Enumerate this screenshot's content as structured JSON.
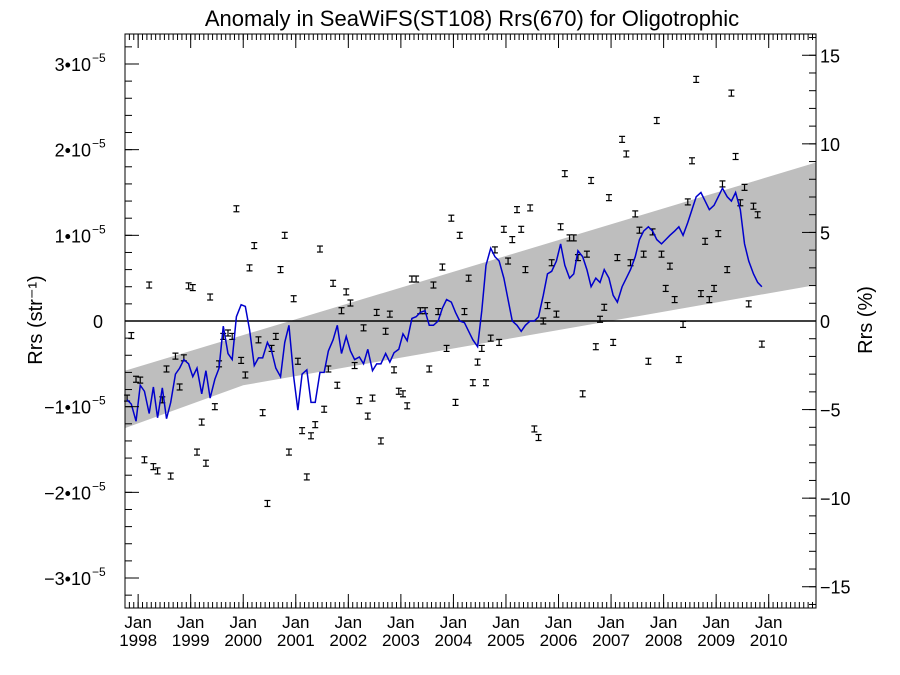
{
  "chart_data": {
    "type": "scatter",
    "title": "Anomaly in SeaWiFS(ST108) Rrs(670) for Oligotrophic",
    "ylabel_left": "Rrs (str⁻¹)",
    "ylabel_right": "Rrs (%)",
    "x_axis": {
      "range": [
        1997.75,
        2010.9
      ],
      "ticks": [
        {
          "x": 1998.0,
          "month": "Jan",
          "year": "1998"
        },
        {
          "x": 1999.0,
          "month": "Jan",
          "year": "1999"
        },
        {
          "x": 2000.0,
          "month": "Jan",
          "year": "2000"
        },
        {
          "x": 2001.0,
          "month": "Jan",
          "year": "2001"
        },
        {
          "x": 2002.0,
          "month": "Jan",
          "year": "2002"
        },
        {
          "x": 2003.0,
          "month": "Jan",
          "year": "2003"
        },
        {
          "x": 2004.0,
          "month": "Jan",
          "year": "2004"
        },
        {
          "x": 2005.0,
          "month": "Jan",
          "year": "2005"
        },
        {
          "x": 2006.0,
          "month": "Jan",
          "year": "2006"
        },
        {
          "x": 2007.0,
          "month": "Jan",
          "year": "2007"
        },
        {
          "x": 2008.0,
          "month": "Jan",
          "year": "2008"
        },
        {
          "x": 2009.0,
          "month": "Jan",
          "year": "2009"
        },
        {
          "x": 2010.0,
          "month": "Jan",
          "year": "2010"
        }
      ]
    },
    "y_left": {
      "range": [
        -3.35e-05,
        3.35e-05
      ],
      "ticks": [
        {
          "v": 3e-05,
          "mant": "3•10",
          "exp": "−5"
        },
        {
          "v": 2e-05,
          "mant": "2•10",
          "exp": "−5"
        },
        {
          "v": 1e-05,
          "mant": "1•10",
          "exp": "−5"
        },
        {
          "v": 0,
          "mant": "0",
          "exp": ""
        },
        {
          "v": -1e-05,
          "mant": "−1•10",
          "exp": "−5"
        },
        {
          "v": -2e-05,
          "mant": "−2•10",
          "exp": "−5"
        },
        {
          "v": -3e-05,
          "mant": "−3•10",
          "exp": "−5"
        }
      ]
    },
    "y_right": {
      "range": [
        -16.2,
        16.2
      ],
      "ticks": [
        {
          "v": 15,
          "label": "15"
        },
        {
          "v": 10,
          "label": "10"
        },
        {
          "v": 5,
          "label": "5"
        },
        {
          "v": 0,
          "label": "0"
        },
        {
          "v": -5,
          "label": "−5"
        },
        {
          "v": -10,
          "label": "−10"
        },
        {
          "v": -15,
          "label": "−15"
        }
      ]
    },
    "zero_line": 0,
    "trend_band": {
      "color": "#bebebe",
      "upper": [
        [
          1997.75,
          -5.8e-06
        ],
        [
          2010.9,
          1.85e-05
        ]
      ],
      "lower": [
        [
          1997.75,
          -1.25e-05
        ],
        [
          2000.0,
          -7.5e-06
        ],
        [
          2010.9,
          4.2e-06
        ]
      ]
    },
    "points": [
      [
        1997.79,
        -9e-06
      ],
      [
        1997.87,
        -1.7e-06
      ],
      [
        1997.96,
        -6.8e-06
      ],
      [
        1998.04,
        -6.9e-06
      ],
      [
        1998.12,
        -1.62e-05
      ],
      [
        1998.21,
        4.2e-06
      ],
      [
        1998.29,
        -1.7e-05
      ],
      [
        1998.37,
        -1.75e-05
      ],
      [
        1998.46,
        -9.2e-06
      ],
      [
        1998.54,
        -5.6e-06
      ],
      [
        1998.62,
        -1.81e-05
      ],
      [
        1998.71,
        -4.1e-06
      ],
      [
        1998.79,
        -7.7e-06
      ],
      [
        1998.87,
        -4.3e-06
      ],
      [
        1998.96,
        4.1e-06
      ],
      [
        1999.04,
        3.9e-06
      ],
      [
        1999.12,
        -1.53e-05
      ],
      [
        1999.21,
        -1.18e-05
      ],
      [
        1999.29,
        -1.66e-05
      ],
      [
        1999.37,
        2.8e-06
      ],
      [
        1999.46,
        -1e-05
      ],
      [
        1999.54,
        -5e-06
      ],
      [
        1999.62,
        -1.8e-06
      ],
      [
        1999.71,
        -1.4e-06
      ],
      [
        1999.79,
        -1.8e-06
      ],
      [
        1999.87,
        1.31e-05
      ],
      [
        1999.96,
        -4.6e-06
      ],
      [
        2000.04,
        -6.3e-06
      ],
      [
        2000.12,
        6.2e-06
      ],
      [
        2000.21,
        8.8e-06
      ],
      [
        2000.29,
        -2.2e-06
      ],
      [
        2000.37,
        -1.07e-05
      ],
      [
        2000.46,
        -2.13e-05
      ],
      [
        2000.54,
        -3.2e-06
      ],
      [
        2000.62,
        -1.8e-06
      ],
      [
        2000.71,
        6e-06
      ],
      [
        2000.79,
        1e-05
      ],
      [
        2000.87,
        -1.53e-05
      ],
      [
        2000.96,
        2.6e-06
      ],
      [
        2001.04,
        -4.7e-06
      ],
      [
        2001.12,
        -1.28e-05
      ],
      [
        2001.21,
        -1.82e-05
      ],
      [
        2001.29,
        -1.34e-05
      ],
      [
        2001.37,
        -1.21e-05
      ],
      [
        2001.46,
        8.4e-06
      ],
      [
        2001.54,
        -1.03e-05
      ],
      [
        2001.62,
        -5.6e-06
      ],
      [
        2001.71,
        4.4e-06
      ],
      [
        2001.79,
        -7.5e-06
      ],
      [
        2001.87,
        1.2e-06
      ],
      [
        2001.96,
        3.4e-06
      ],
      [
        2002.04,
        2.1e-06
      ],
      [
        2002.12,
        -5.2e-06
      ],
      [
        2002.21,
        -9.3e-06
      ],
      [
        2002.29,
        -8e-07
      ],
      [
        2002.37,
        -1.11e-05
      ],
      [
        2002.46,
        -9e-06
      ],
      [
        2002.54,
        1e-06
      ],
      [
        2002.62,
        -1.4e-05
      ],
      [
        2002.71,
        -1.2e-06
      ],
      [
        2002.79,
        8e-07
      ],
      [
        2002.87,
        -5.7e-06
      ],
      [
        2002.96,
        -8.2e-06
      ],
      [
        2003.04,
        -8.5e-06
      ],
      [
        2003.12,
        -9.9e-06
      ],
      [
        2003.21,
        4.9e-06
      ],
      [
        2003.29,
        4.9e-06
      ],
      [
        2003.37,
        1.2e-06
      ],
      [
        2003.46,
        1.2e-06
      ],
      [
        2003.54,
        -5.6e-06
      ],
      [
        2003.62,
        4.2e-06
      ],
      [
        2003.71,
        1.1e-06
      ],
      [
        2003.79,
        6.3e-06
      ],
      [
        2003.87,
        -3.2e-06
      ],
      [
        2003.96,
        1.2e-05
      ],
      [
        2004.04,
        -9.5e-06
      ],
      [
        2004.12,
        1e-05
      ],
      [
        2004.21,
        1.1e-06
      ],
      [
        2004.29,
        5e-06
      ],
      [
        2004.37,
        -7.2e-06
      ],
      [
        2004.46,
        -4.8e-06
      ],
      [
        2004.54,
        -3.2e-06
      ],
      [
        2004.62,
        -7.2e-06
      ],
      [
        2004.71,
        -2e-06
      ],
      [
        2004.79,
        8.3e-06
      ],
      [
        2004.87,
        -2.5e-06
      ],
      [
        2004.96,
        1.07e-05
      ],
      [
        2005.04,
        7e-06
      ],
      [
        2005.12,
        9.5e-06
      ],
      [
        2005.21,
        1.3e-05
      ],
      [
        2005.29,
        1.07e-05
      ],
      [
        2005.37,
        6e-06
      ],
      [
        2005.46,
        1.32e-05
      ],
      [
        2005.54,
        -1.26e-05
      ],
      [
        2005.62,
        -1.36e-05
      ],
      [
        2005.71,
        0.0
      ],
      [
        2005.79,
        1.8e-06
      ],
      [
        2005.87,
        6.8e-06
      ],
      [
        2005.96,
        8e-07
      ],
      [
        2006.04,
        1.1e-05
      ],
      [
        2006.12,
        1.72e-05
      ],
      [
        2006.21,
        9.7e-06
      ],
      [
        2006.29,
        9.7e-06
      ],
      [
        2006.37,
        7.4e-06
      ],
      [
        2006.46,
        -8.5e-06
      ],
      [
        2006.54,
        7.8e-06
      ],
      [
        2006.62,
        1.64e-05
      ],
      [
        2006.71,
        -3e-06
      ],
      [
        2006.79,
        2e-07
      ],
      [
        2006.87,
        1.6e-06
      ],
      [
        2006.96,
        1.44e-05
      ],
      [
        2007.04,
        -2.5e-06
      ],
      [
        2007.12,
        7.4e-06
      ],
      [
        2007.21,
        2.12e-05
      ],
      [
        2007.29,
        1.95e-05
      ],
      [
        2007.37,
        6.8e-06
      ],
      [
        2007.46,
        1.25e-05
      ],
      [
        2007.54,
        1.06e-05
      ],
      [
        2007.62,
        7.8e-06
      ],
      [
        2007.71,
        -4.7e-06
      ],
      [
        2007.79,
        1.04e-05
      ],
      [
        2007.87,
        2.34e-05
      ],
      [
        2007.96,
        7.8e-06
      ],
      [
        2008.04,
        3.8e-06
      ],
      [
        2008.12,
        6.4e-06
      ],
      [
        2008.21,
        2.5e-06
      ],
      [
        2008.29,
        -4.5e-06
      ],
      [
        2008.37,
        -4e-07
      ],
      [
        2008.46,
        1.39e-05
      ],
      [
        2008.54,
        1.87e-05
      ],
      [
        2008.62,
        2.82e-05
      ],
      [
        2008.71,
        3.2e-06
      ],
      [
        2008.79,
        9.3e-06
      ],
      [
        2008.87,
        2.5e-06
      ],
      [
        2008.96,
        3.8e-06
      ],
      [
        2009.04,
        1.02e-05
      ],
      [
        2009.12,
        1.6e-05
      ],
      [
        2009.21,
        6e-06
      ],
      [
        2009.29,
        2.66e-05
      ],
      [
        2009.37,
        1.92e-05
      ],
      [
        2009.46,
        1.38e-05
      ],
      [
        2009.54,
        1.56e-05
      ],
      [
        2009.62,
        2e-06
      ],
      [
        2009.71,
        1.34e-05
      ],
      [
        2009.79,
        1.24e-05
      ],
      [
        2009.87,
        -2.7e-06
      ]
    ],
    "smoothed_line": {
      "color": "#0000cc",
      "points": [
        [
          1997.79,
          -9.2e-06
        ],
        [
          1997.87,
          -9.7e-06
        ],
        [
          1997.96,
          -1.17e-05
        ],
        [
          1998.04,
          -7.5e-06
        ],
        [
          1998.12,
          -8.2e-06
        ],
        [
          1998.21,
          -1.08e-05
        ],
        [
          1998.29,
          -7.7e-06
        ],
        [
          1998.37,
          -1.13e-05
        ],
        [
          1998.46,
          -7.8e-06
        ],
        [
          1998.54,
          -1.14e-05
        ],
        [
          1998.62,
          -9.5e-06
        ],
        [
          1998.71,
          -6.2e-06
        ],
        [
          1998.79,
          -5.5e-06
        ],
        [
          1998.87,
          -4.5e-06
        ],
        [
          1998.96,
          -5e-06
        ],
        [
          1999.04,
          -6.5e-06
        ],
        [
          1999.12,
          -5.5e-06
        ],
        [
          1999.21,
          -8.5e-06
        ],
        [
          1999.29,
          -5.8e-06
        ],
        [
          1999.37,
          -9e-06
        ],
        [
          1999.46,
          -6.8e-06
        ],
        [
          1999.54,
          -5.5e-06
        ],
        [
          1999.62,
          -6e-07
        ],
        [
          1999.71,
          -3.8e-06
        ],
        [
          1999.79,
          -4.5e-06
        ],
        [
          1999.87,
          5e-07
        ],
        [
          1999.96,
          1.9e-06
        ],
        [
          2000.04,
          1.7e-06
        ],
        [
          2000.12,
          -1e-06
        ],
        [
          2000.21,
          -5.2e-06
        ],
        [
          2000.29,
          -4.3e-06
        ],
        [
          2000.37,
          -4.3e-06
        ],
        [
          2000.46,
          -2.5e-06
        ],
        [
          2000.54,
          -3.5e-06
        ],
        [
          2000.62,
          -5.5e-06
        ],
        [
          2000.71,
          -6.5e-06
        ],
        [
          2000.79,
          -2.5e-06
        ],
        [
          2000.87,
          -5e-07
        ],
        [
          2000.96,
          -6.5e-06
        ],
        [
          2001.04,
          -1.04e-05
        ],
        [
          2001.12,
          -6.2e-06
        ],
        [
          2001.21,
          -5.7e-06
        ],
        [
          2001.29,
          -9.5e-06
        ],
        [
          2001.37,
          -9.5e-06
        ],
        [
          2001.46,
          -6e-06
        ],
        [
          2001.54,
          -6e-06
        ],
        [
          2001.62,
          -3.5e-06
        ],
        [
          2001.71,
          -2.2e-06
        ],
        [
          2001.79,
          -5e-07
        ],
        [
          2001.87,
          -3.8e-06
        ],
        [
          2001.96,
          -1.8e-06
        ],
        [
          2002.04,
          -3.5e-06
        ],
        [
          2002.12,
          -4.5e-06
        ],
        [
          2002.21,
          -4.2e-06
        ],
        [
          2002.29,
          -5e-06
        ],
        [
          2002.37,
          -3.3e-06
        ],
        [
          2002.46,
          -5.8e-06
        ],
        [
          2002.54,
          -5e-06
        ],
        [
          2002.62,
          -5e-06
        ],
        [
          2002.71,
          -3.8e-06
        ],
        [
          2002.79,
          -4.8e-06
        ],
        [
          2002.87,
          -3.7e-06
        ],
        [
          2002.96,
          -3.3e-06
        ],
        [
          2003.04,
          -1.5e-06
        ],
        [
          2003.12,
          -2.3e-06
        ],
        [
          2003.21,
          3e-07
        ],
        [
          2003.29,
          5e-07
        ],
        [
          2003.37,
          1e-06
        ],
        [
          2003.46,
          1.2e-06
        ],
        [
          2003.54,
          -5e-07
        ],
        [
          2003.62,
          -5e-07
        ],
        [
          2003.71,
          0.0
        ],
        [
          2003.79,
          1.5e-06
        ],
        [
          2003.87,
          2.5e-06
        ],
        [
          2003.96,
          2.2e-06
        ],
        [
          2004.04,
          1e-06
        ],
        [
          2004.12,
          0.0
        ],
        [
          2004.21,
          -2e-07
        ],
        [
          2004.29,
          -1.2e-06
        ],
        [
          2004.37,
          -2.2e-06
        ],
        [
          2004.46,
          -3e-06
        ],
        [
          2004.54,
          1.2e-06
        ],
        [
          2004.62,
          6.5e-06
        ],
        [
          2004.71,
          8.5e-06
        ],
        [
          2004.79,
          7.5e-06
        ],
        [
          2004.87,
          7e-06
        ],
        [
          2004.96,
          5e-06
        ],
        [
          2005.04,
          2.5e-06
        ],
        [
          2005.12,
          0.0
        ],
        [
          2005.21,
          -5e-07
        ],
        [
          2005.29,
          -1.2e-06
        ],
        [
          2005.37,
          -5e-07
        ],
        [
          2005.46,
          0.0
        ],
        [
          2005.54,
          0.0
        ],
        [
          2005.62,
          5e-07
        ],
        [
          2005.71,
          3e-06
        ],
        [
          2005.79,
          5.5e-06
        ],
        [
          2005.87,
          5.8e-06
        ],
        [
          2005.96,
          7e-06
        ],
        [
          2006.04,
          9e-06
        ],
        [
          2006.12,
          6.5e-06
        ],
        [
          2006.21,
          5e-06
        ],
        [
          2006.29,
          5.5e-06
        ],
        [
          2006.37,
          8.2e-06
        ],
        [
          2006.46,
          7.5e-06
        ],
        [
          2006.54,
          6e-06
        ],
        [
          2006.62,
          4e-06
        ],
        [
          2006.71,
          5e-06
        ],
        [
          2006.79,
          4.5e-06
        ],
        [
          2006.87,
          6e-06
        ],
        [
          2006.96,
          5e-06
        ],
        [
          2007.04,
          3e-06
        ],
        [
          2007.12,
          2.2e-06
        ],
        [
          2007.21,
          4e-06
        ],
        [
          2007.29,
          5e-06
        ],
        [
          2007.37,
          6e-06
        ],
        [
          2007.46,
          7.5e-06
        ],
        [
          2007.54,
          9.5e-06
        ],
        [
          2007.62,
          1.05e-05
        ],
        [
          2007.71,
          1.1e-05
        ],
        [
          2007.79,
          1.05e-05
        ],
        [
          2007.87,
          9.5e-06
        ],
        [
          2007.96,
          9e-06
        ],
        [
          2008.04,
          9.5e-06
        ],
        [
          2008.12,
          1e-05
        ],
        [
          2008.21,
          1.05e-05
        ],
        [
          2008.29,
          1.1e-05
        ],
        [
          2008.37,
          1e-05
        ],
        [
          2008.46,
          1.15e-05
        ],
        [
          2008.54,
          1.3e-05
        ],
        [
          2008.62,
          1.45e-05
        ],
        [
          2008.71,
          1.5e-05
        ],
        [
          2008.79,
          1.4e-05
        ],
        [
          2008.87,
          1.3e-05
        ],
        [
          2008.96,
          1.35e-05
        ],
        [
          2009.04,
          1.45e-05
        ],
        [
          2009.12,
          1.55e-05
        ],
        [
          2009.21,
          1.45e-05
        ],
        [
          2009.29,
          1.4e-05
        ],
        [
          2009.37,
          1.5e-05
        ],
        [
          2009.46,
          1.3e-05
        ],
        [
          2009.54,
          9e-06
        ],
        [
          2009.62,
          7e-06
        ],
        [
          2009.71,
          5.5e-06
        ],
        [
          2009.79,
          4.5e-06
        ],
        [
          2009.87,
          4e-06
        ]
      ]
    }
  }
}
